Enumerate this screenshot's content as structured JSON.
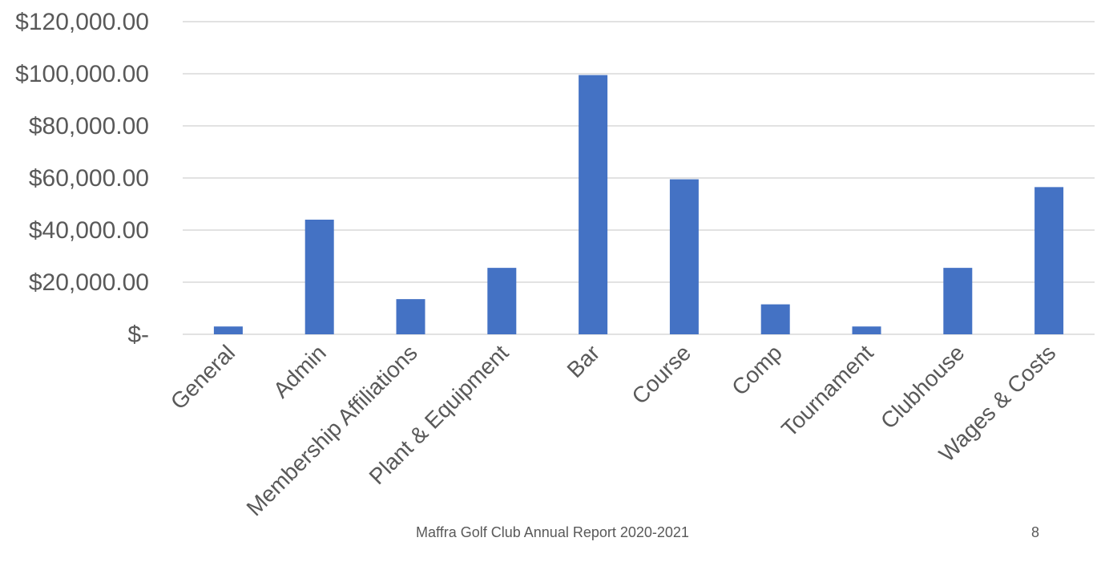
{
  "chart_data": {
    "type": "bar",
    "categories": [
      "General",
      "Admin",
      "Membership Affiliations",
      "Plant & Equipment",
      "Bar",
      "Course",
      "Comp",
      "Tournament",
      "Clubhouse",
      "Wages & Costs"
    ],
    "values": [
      3000,
      44000,
      13500,
      25500,
      99500,
      59500,
      11500,
      3000,
      25500,
      56500
    ],
    "ytick_labels": [
      "$-",
      "$20,000.00",
      "$40,000.00",
      "$60,000.00",
      "$80,000.00",
      "$100,000.00",
      "$120,000.00"
    ],
    "ytick_values": [
      0,
      20000,
      40000,
      60000,
      80000,
      100000,
      120000
    ],
    "ylim": [
      0,
      120000
    ],
    "title": "",
    "xlabel": "",
    "ylabel": "",
    "grid": true,
    "bar_color": "#4472c4",
    "grid_color": "#d9d9d9"
  },
  "footer": {
    "title": "Maffra Golf Club Annual Report 2020-2021",
    "page_number": "8"
  }
}
